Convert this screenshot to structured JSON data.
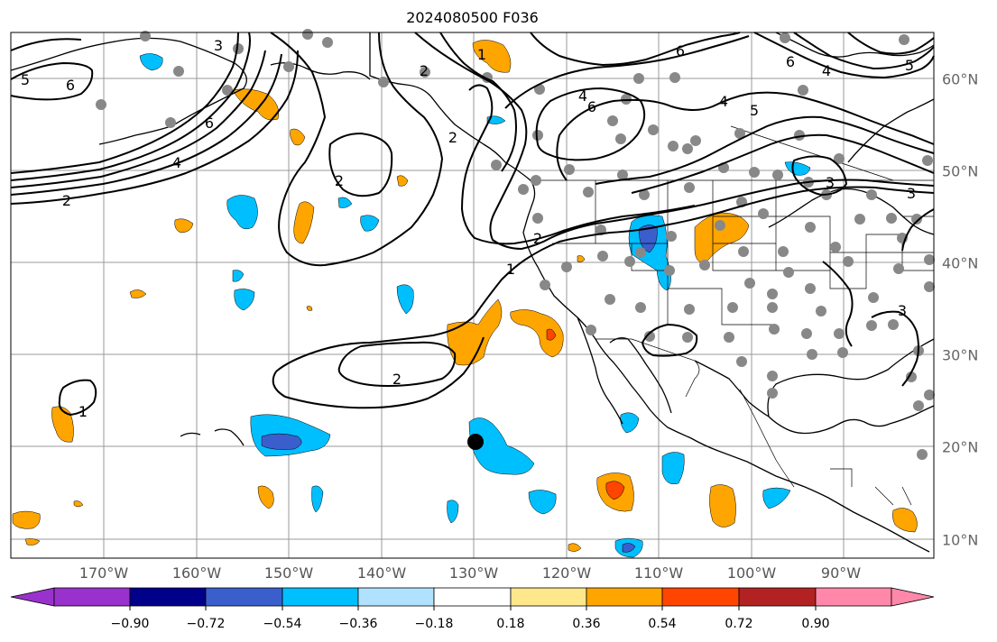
{
  "title": "2024080500 F036",
  "map": {
    "lon_labels": [
      "170°W",
      "160°W",
      "150°W",
      "140°W",
      "130°W",
      "120°W",
      "110°W",
      "100°W",
      "90°W"
    ],
    "lat_labels": [
      "60°N",
      "50°N",
      "40°N",
      "30°N",
      "20°N",
      "10°N"
    ],
    "contour_labels": [
      "5",
      "6",
      "3",
      "2",
      "6",
      "4",
      "2",
      "1",
      "6",
      "4",
      "6",
      "5",
      "4",
      "2",
      "1",
      "2",
      "2",
      "1",
      "2",
      "3",
      "3",
      "5",
      "6",
      "4",
      "3"
    ]
  },
  "colorbar": {
    "ticks": [
      "−0.90",
      "−0.72",
      "−0.54",
      "−0.36",
      "−0.18",
      "0.18",
      "0.36",
      "0.54",
      "0.72",
      "0.90"
    ],
    "colors": [
      "#9932cc",
      "#00008b",
      "#3a5fcd",
      "#00bfff",
      "#b0e2ff",
      "#ffffff",
      "#fee88b",
      "#ffa500",
      "#ff4500",
      "#b22222",
      "#ff88aa"
    ]
  }
}
